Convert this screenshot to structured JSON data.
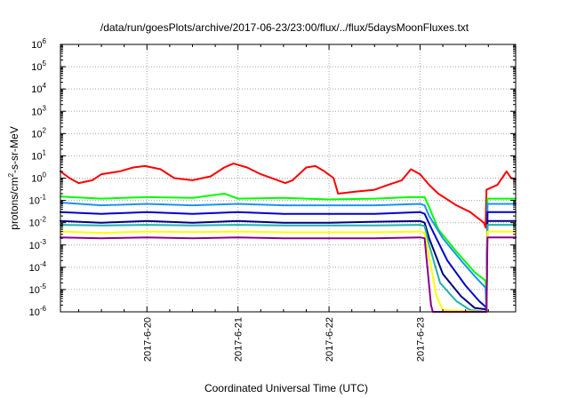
{
  "chart_data": {
    "type": "line",
    "title": "/data/run/goesPlots/archive/2017-06-23/23:00/flux/../flux/5daysMoonFluxes.txt",
    "xlabel": "Coordinated Universal Time (UTC)",
    "ylabel": {
      "base": "protons/cm",
      "sup": "2",
      "rest": "-s-sr-MeV"
    },
    "yscale": "log",
    "ylim": [
      1e-06,
      1000000.0
    ],
    "xlim": [
      -0.95,
      4.05
    ],
    "grid": true,
    "x_ticks": [
      {
        "value": 0,
        "label": "2017-6-20"
      },
      {
        "value": 1,
        "label": "2017-6-21"
      },
      {
        "value": 2,
        "label": "2017-6-22"
      },
      {
        "value": 3,
        "label": "2017-6-23"
      }
    ],
    "y_ticks": [
      {
        "exp": -6,
        "base": "10",
        "sup": "-6"
      },
      {
        "exp": -5,
        "base": "10",
        "sup": "-5"
      },
      {
        "exp": -4,
        "base": "10",
        "sup": "-4"
      },
      {
        "exp": -3,
        "base": "10",
        "sup": "-3"
      },
      {
        "exp": -2,
        "base": "10",
        "sup": "-2"
      },
      {
        "exp": -1,
        "base": "10",
        "sup": "-1"
      },
      {
        "exp": 0,
        "base": "10",
        "sup": "0"
      },
      {
        "exp": 1,
        "base": "10",
        "sup": "1"
      },
      {
        "exp": 2,
        "base": "10",
        "sup": "2"
      },
      {
        "exp": 3,
        "base": "10",
        "sup": "3"
      },
      {
        "exp": 4,
        "base": "10",
        "sup": "4"
      },
      {
        "exp": 5,
        "base": "10",
        "sup": "5"
      },
      {
        "exp": 6,
        "base": "10",
        "sup": "6"
      }
    ],
    "series": [
      {
        "color": "#ff0000",
        "width": 2,
        "points": [
          [
            -0.95,
            2.0
          ],
          [
            -0.85,
            1.0
          ],
          [
            -0.75,
            0.6
          ],
          [
            -0.6,
            0.8
          ],
          [
            -0.5,
            1.5
          ],
          [
            -0.3,
            2.0
          ],
          [
            -0.15,
            3.0
          ],
          [
            -0.02,
            3.5
          ],
          [
            0.15,
            2.5
          ],
          [
            0.3,
            1.0
          ],
          [
            0.5,
            0.8
          ],
          [
            0.7,
            1.2
          ],
          [
            0.85,
            3.0
          ],
          [
            0.95,
            4.5
          ],
          [
            1.1,
            3.0
          ],
          [
            1.25,
            1.5
          ],
          [
            1.4,
            0.9
          ],
          [
            1.52,
            0.6
          ],
          [
            1.6,
            0.8
          ],
          [
            1.75,
            3.0
          ],
          [
            1.85,
            3.5
          ],
          [
            1.95,
            2.0
          ],
          [
            2.05,
            1.0
          ],
          [
            2.1,
            0.2
          ],
          [
            2.3,
            0.25
          ],
          [
            2.5,
            0.3
          ],
          [
            2.65,
            0.5
          ],
          [
            2.8,
            0.8
          ],
          [
            2.9,
            2.5
          ],
          [
            3.0,
            1.5
          ],
          [
            3.1,
            0.5
          ],
          [
            3.2,
            0.2
          ],
          [
            3.4,
            0.06
          ],
          [
            3.55,
            0.03
          ],
          [
            3.7,
            0.01
          ],
          [
            3.72,
            0.006
          ],
          [
            3.73,
            0.3
          ],
          [
            3.85,
            0.5
          ],
          [
            3.95,
            2.0
          ],
          [
            4.0,
            1.0
          ],
          [
            4.05,
            0.9
          ]
        ]
      },
      {
        "color": "#00ff00",
        "width": 2,
        "points": [
          [
            -0.95,
            0.15
          ],
          [
            -0.5,
            0.12
          ],
          [
            0,
            0.14
          ],
          [
            0.5,
            0.13
          ],
          [
            0.85,
            0.2
          ],
          [
            1.0,
            0.12
          ],
          [
            1.5,
            0.13
          ],
          [
            2.0,
            0.11
          ],
          [
            2.5,
            0.12
          ],
          [
            2.9,
            0.14
          ],
          [
            3.05,
            0.14
          ],
          [
            3.1,
            0.05
          ],
          [
            3.2,
            0.005
          ],
          [
            3.4,
            0.0005
          ],
          [
            3.6,
            6e-05
          ],
          [
            3.72,
            2.5e-05
          ],
          [
            3.73,
            1e-06
          ],
          [
            3.74,
            0.12
          ],
          [
            4.05,
            0.12
          ]
        ]
      },
      {
        "color": "#1e90ff",
        "width": 2,
        "points": [
          [
            -0.95,
            0.08
          ],
          [
            -0.5,
            0.06
          ],
          [
            0,
            0.07
          ],
          [
            0.5,
            0.06
          ],
          [
            1.0,
            0.07
          ],
          [
            1.5,
            0.06
          ],
          [
            2.0,
            0.06
          ],
          [
            2.5,
            0.06
          ],
          [
            3.0,
            0.07
          ],
          [
            3.05,
            0.06
          ],
          [
            3.1,
            0.02
          ],
          [
            3.25,
            0.002
          ],
          [
            3.45,
            0.0002
          ],
          [
            3.6,
            4e-05
          ],
          [
            3.72,
            1.2e-05
          ],
          [
            3.73,
            1e-06
          ],
          [
            3.74,
            0.07
          ],
          [
            4.05,
            0.07
          ]
        ]
      },
      {
        "color": "#0000cd",
        "width": 2,
        "points": [
          [
            -0.95,
            0.03
          ],
          [
            -0.5,
            0.025
          ],
          [
            0,
            0.03
          ],
          [
            0.5,
            0.025
          ],
          [
            1.0,
            0.03
          ],
          [
            1.5,
            0.025
          ],
          [
            2.0,
            0.025
          ],
          [
            2.5,
            0.025
          ],
          [
            3.0,
            0.03
          ],
          [
            3.05,
            0.025
          ],
          [
            3.12,
            0.006
          ],
          [
            3.3,
            0.0002
          ],
          [
            3.5,
            1.5e-05
          ],
          [
            3.65,
            3e-06
          ],
          [
            3.72,
            1.7e-06
          ],
          [
            3.73,
            1e-06
          ],
          [
            3.74,
            0.03
          ],
          [
            4.05,
            0.03
          ]
        ]
      },
      {
        "color": "#000080",
        "width": 2,
        "points": [
          [
            -0.95,
            0.012
          ],
          [
            -0.5,
            0.01
          ],
          [
            0,
            0.012
          ],
          [
            0.5,
            0.01
          ],
          [
            1.0,
            0.012
          ],
          [
            1.5,
            0.01
          ],
          [
            2.0,
            0.01
          ],
          [
            2.5,
            0.011
          ],
          [
            3.0,
            0.012
          ],
          [
            3.05,
            0.01
          ],
          [
            3.1,
            0.002
          ],
          [
            3.25,
            5e-05
          ],
          [
            3.45,
            5e-06
          ],
          [
            3.6,
            1.5e-06
          ],
          [
            3.72,
            1.3e-06
          ],
          [
            3.73,
            1e-06
          ],
          [
            3.74,
            0.012
          ],
          [
            4.05,
            0.012
          ]
        ]
      },
      {
        "color": "#20b2aa",
        "width": 2,
        "points": [
          [
            -0.95,
            0.008
          ],
          [
            -0.5,
            0.0075
          ],
          [
            0,
            0.008
          ],
          [
            0.5,
            0.0075
          ],
          [
            1.0,
            0.008
          ],
          [
            1.5,
            0.0075
          ],
          [
            2.0,
            0.0075
          ],
          [
            2.5,
            0.0075
          ],
          [
            3.0,
            0.008
          ],
          [
            3.05,
            0.007
          ],
          [
            3.1,
            0.001
          ],
          [
            3.22,
            2e-05
          ],
          [
            3.4,
            3e-06
          ],
          [
            3.55,
            1.2e-06
          ],
          [
            3.72,
            1e-06
          ],
          [
            3.73,
            1e-06
          ],
          [
            3.74,
            0.008
          ],
          [
            4.05,
            0.008
          ]
        ]
      },
      {
        "color": "#ffff00",
        "width": 2,
        "points": [
          [
            -0.95,
            0.004
          ],
          [
            -0.5,
            0.0035
          ],
          [
            0,
            0.004
          ],
          [
            0.5,
            0.0038
          ],
          [
            1.0,
            0.004
          ],
          [
            1.5,
            0.0037
          ],
          [
            2.0,
            0.0037
          ],
          [
            2.5,
            0.0037
          ],
          [
            3.0,
            0.004
          ],
          [
            3.05,
            0.0035
          ],
          [
            3.1,
            0.0003
          ],
          [
            3.18,
            5e-06
          ],
          [
            3.25,
            1.2e-06
          ],
          [
            3.72,
            1e-06
          ],
          [
            3.73,
            1e-06
          ],
          [
            3.74,
            0.004
          ],
          [
            4.05,
            0.004
          ]
        ]
      },
      {
        "color": "#8b008b",
        "width": 2,
        "points": [
          [
            -0.95,
            0.0022
          ],
          [
            -0.5,
            0.002
          ],
          [
            0,
            0.0022
          ],
          [
            0.5,
            0.002
          ],
          [
            1.0,
            0.0022
          ],
          [
            1.5,
            0.002
          ],
          [
            2.0,
            0.002
          ],
          [
            2.5,
            0.002
          ],
          [
            3.0,
            0.0022
          ],
          [
            3.05,
            0.002
          ],
          [
            3.08,
            0.0001
          ],
          [
            3.12,
            2e-06
          ],
          [
            3.14,
            1e-06
          ],
          [
            3.72,
            1e-06
          ],
          [
            3.73,
            1e-06
          ],
          [
            3.74,
            0.0022
          ],
          [
            4.05,
            0.0022
          ]
        ]
      }
    ]
  }
}
